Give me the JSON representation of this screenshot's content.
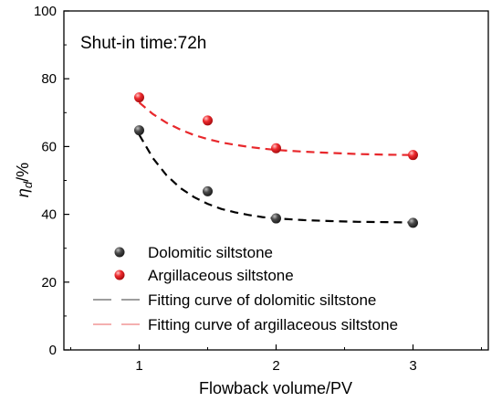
{
  "chart_data": {
    "type": "scatter",
    "title": "",
    "annotation": "Shut-in time:72h",
    "xlabel": "Flowback volume/PV",
    "ylabel_main": "η",
    "ylabel_sub": "d",
    "ylabel_unit": "/%",
    "xlim": [
      0.45,
      3.55
    ],
    "ylim": [
      0,
      100
    ],
    "xticks": [
      1,
      2,
      3
    ],
    "yticks": [
      0,
      20,
      40,
      60,
      80,
      100
    ],
    "legend_position": "bottom-left",
    "series": [
      {
        "name": "Dolomitic siltstone",
        "kind": "points",
        "color": "#3a3a3a",
        "x": [
          1,
          1.5,
          2,
          3
        ],
        "y": [
          64.8,
          46.8,
          38.8,
          37.5
        ]
      },
      {
        "name": "Argillaceous siltstone",
        "kind": "points",
        "color": "#e8282c",
        "x": [
          1,
          1.5,
          2,
          3
        ],
        "y": [
          74.5,
          67.7,
          59.5,
          57.5
        ]
      },
      {
        "name": "Fitting curve of dolomitic siltstone",
        "kind": "curve",
        "color": "#000000",
        "legend_color": "#9e9e9e",
        "x": [
          1.0,
          1.1,
          1.2,
          1.3,
          1.4,
          1.5,
          1.6,
          1.7,
          1.8,
          1.9,
          2.0,
          2.2,
          2.4,
          2.6,
          2.8,
          3.0
        ],
        "y": [
          63.5,
          56.6,
          51.5,
          47.8,
          45.1,
          43.1,
          41.6,
          40.6,
          39.8,
          39.2,
          38.8,
          38.3,
          38.0,
          37.8,
          37.7,
          37.6
        ]
      },
      {
        "name": "Fitting curve of argillaceous siltstone",
        "kind": "curve",
        "color": "#e8282c",
        "legend_color": "#f4b0b0",
        "x": [
          1.0,
          1.1,
          1.2,
          1.3,
          1.4,
          1.5,
          1.6,
          1.7,
          1.8,
          1.9,
          2.0,
          2.2,
          2.4,
          2.6,
          2.8,
          3.0
        ],
        "y": [
          73.0,
          69.6,
          67.0,
          65.0,
          63.4,
          62.2,
          61.2,
          60.5,
          59.9,
          59.4,
          59.0,
          58.5,
          58.1,
          57.8,
          57.6,
          57.5
        ]
      }
    ]
  }
}
